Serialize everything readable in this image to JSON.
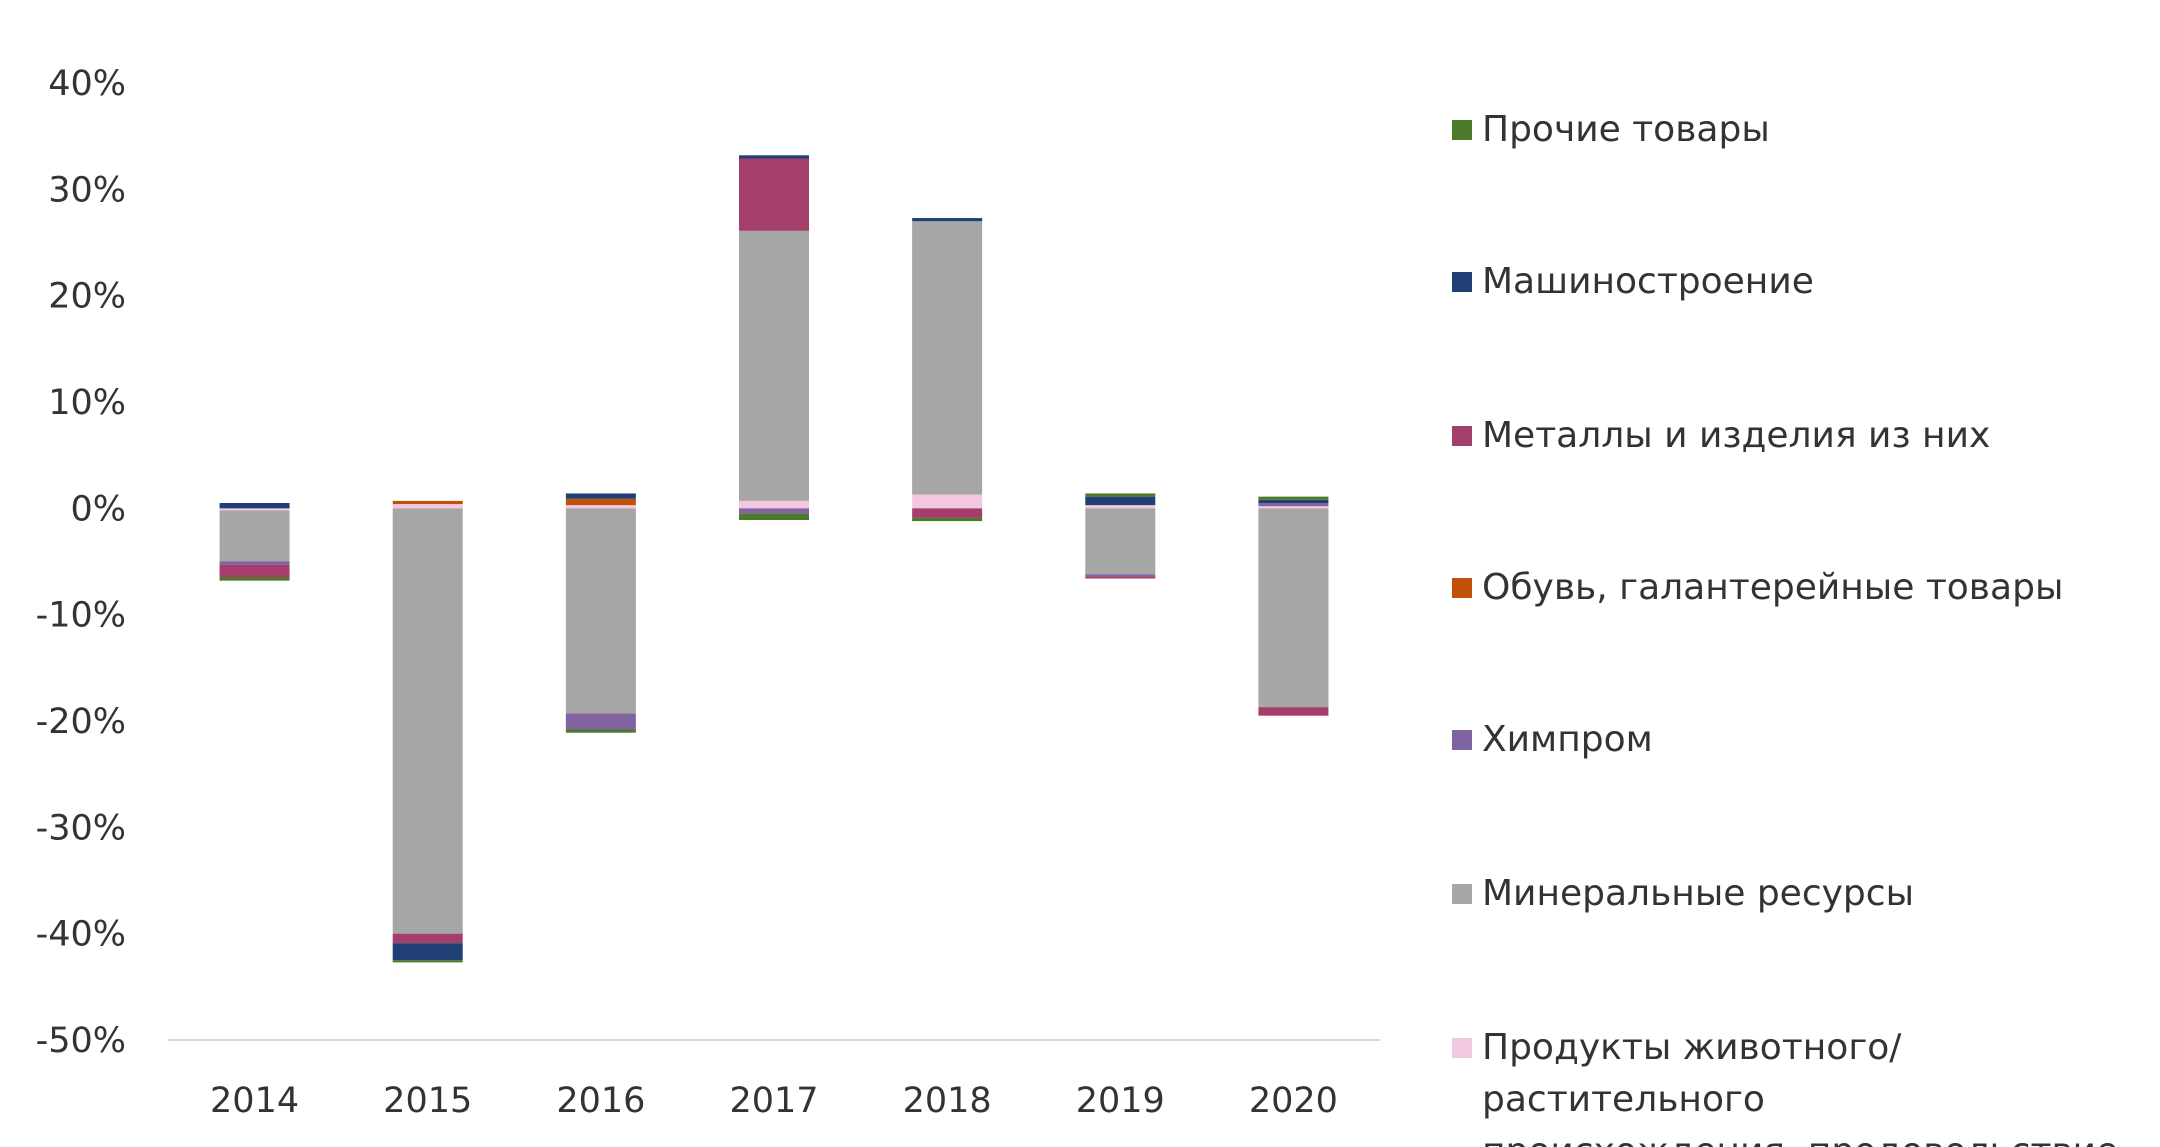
{
  "chart_data": {
    "type": "bar",
    "stacked": true,
    "categories": [
      "2014",
      "2015",
      "2016",
      "2017",
      "2018",
      "2019",
      "2020"
    ],
    "ylim": [
      -50,
      40
    ],
    "yticks": [
      40,
      30,
      20,
      10,
      0,
      -10,
      -20,
      -30,
      -40,
      -50
    ],
    "ytick_labels": [
      "40%",
      "30%",
      "20%",
      "10%",
      "0%",
      "-10%",
      "-20%",
      "-30%",
      "-40%",
      "-50%"
    ],
    "grid": false,
    "legend_position": "right",
    "series": [
      {
        "name": "Продукты животного/растительного происхождения, продовольствие",
        "color": "#F2C8E1",
        "values": [
          -0.2,
          0.4,
          0.3,
          0.7,
          1.3,
          0.3,
          0.2
        ]
      },
      {
        "name": "Минеральные ресурсы",
        "color": "#A6A6A6",
        "values": [
          -4.8,
          -40.0,
          -19.3,
          25.4,
          25.7,
          -6.2,
          -18.7
        ]
      },
      {
        "name": "Химпром",
        "color": "#8064A2",
        "values": [
          -0.3,
          0.0,
          -1.5,
          -0.5,
          0.0,
          -0.2,
          0.3
        ]
      },
      {
        "name": "Обувь, галантерейные товары",
        "color": "#C0500A",
        "values": [
          0.0,
          0.3,
          0.6,
          0.0,
          0.0,
          0.0,
          0.0
        ]
      },
      {
        "name": "Металлы и изделия из них",
        "color": "#A33F6A",
        "values": [
          -1.2,
          -0.9,
          0.0,
          6.8,
          -0.9,
          -0.2,
          -0.8
        ]
      },
      {
        "name": "Машиностроение",
        "color": "#1F3F75",
        "values": [
          0.5,
          -1.6,
          0.5,
          0.3,
          0.3,
          0.8,
          0.3
        ]
      },
      {
        "name": "Прочие товары",
        "color": "#4A7A2A",
        "values": [
          -0.3,
          -0.2,
          -0.3,
          -0.6,
          -0.3,
          0.3,
          0.3
        ]
      }
    ]
  },
  "legend": [
    {
      "label": "Прочие товары",
      "color": "#4A7A2A"
    },
    {
      "label": "Машиностроение",
      "color": "#1F3F75"
    },
    {
      "label": "Металлы и изделия из них",
      "color": "#A33F6A"
    },
    {
      "label": "Обувь, галантерейные товары",
      "color": "#C0500A"
    },
    {
      "label": "Химпром",
      "color": "#8064A2"
    },
    {
      "label": "Минеральные ресурсы",
      "color": "#A6A6A6"
    },
    {
      "label": "Продукты животного/растительного\nпроисхождения, продовольствие",
      "color": "#F2C8E1"
    }
  ]
}
